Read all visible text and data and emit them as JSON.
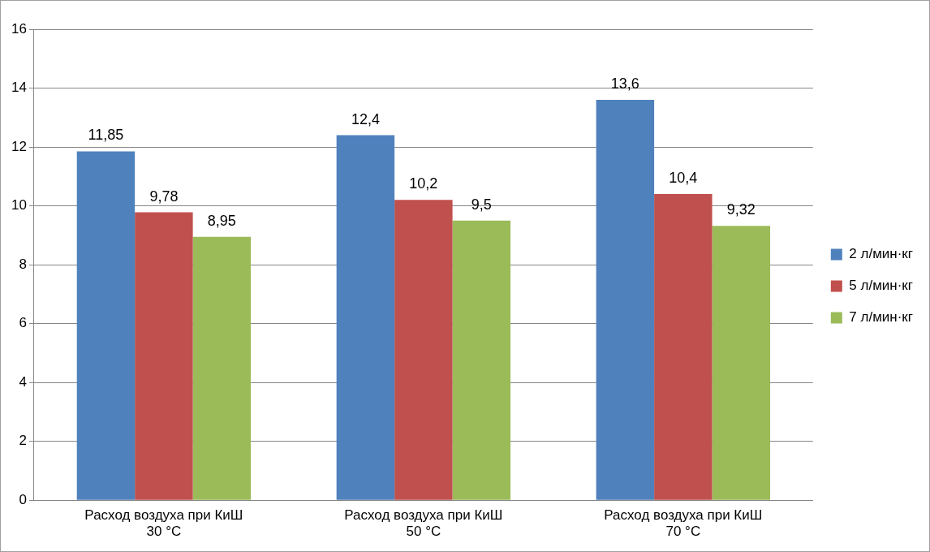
{
  "chart_data": {
    "type": "bar",
    "categories": [
      "Расход воздуха при КиШ\n30 °C",
      "Расход воздуха при КиШ\n50 °C",
      "Расход воздуха при КиШ\n70 °C"
    ],
    "series": [
      {
        "name": "2 л/мин·кг",
        "color": "#4f81bd",
        "values": [
          11.85,
          12.4,
          13.6
        ],
        "value_labels": [
          "11,85",
          "12,4",
          "13,6"
        ]
      },
      {
        "name": "5 л/мин·кг",
        "color": "#c0504d",
        "values": [
          9.78,
          10.2,
          10.4
        ],
        "value_labels": [
          "9,78",
          "10,2",
          "10,4"
        ]
      },
      {
        "name": "7 л/мин·кг",
        "color": "#9bbb59",
        "values": [
          8.95,
          9.5,
          9.32
        ],
        "value_labels": [
          "8,95",
          "9,5",
          "9,32"
        ]
      }
    ],
    "ylim": [
      0,
      16
    ],
    "yticks": [
      0,
      2,
      4,
      6,
      8,
      10,
      12,
      14,
      16
    ],
    "grid": "y",
    "legend": "right"
  }
}
